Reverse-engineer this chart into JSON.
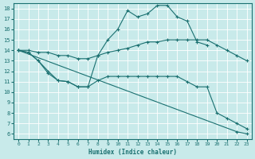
{
  "bg_color": "#c8eaea",
  "line_color": "#1a7070",
  "grid_color": "#b0d8d8",
  "xlabel": "Humidex (Indice chaleur)",
  "xlim": [
    -0.5,
    23.5
  ],
  "ylim": [
    5.5,
    18.5
  ],
  "yticks": [
    6,
    7,
    8,
    9,
    10,
    11,
    12,
    13,
    14,
    15,
    16,
    17,
    18
  ],
  "xticks": [
    0,
    1,
    2,
    3,
    4,
    5,
    6,
    7,
    8,
    9,
    10,
    11,
    12,
    13,
    14,
    15,
    16,
    17,
    18,
    19,
    20,
    21,
    22,
    23
  ],
  "lines": [
    {
      "x": [
        0,
        1,
        2,
        3,
        4,
        5,
        6,
        7,
        8,
        9,
        10,
        11,
        12,
        13,
        14,
        15,
        16,
        17,
        18,
        19
      ],
      "y": [
        14,
        13.8,
        13.0,
        12.0,
        11.1,
        11.0,
        10.5,
        10.5,
        13.5,
        15.0,
        16.0,
        17.8,
        17.2,
        17.5,
        18.3,
        18.3,
        17.2,
        16.8,
        14.8,
        14.5
      ]
    },
    {
      "x": [
        0,
        1,
        2,
        3,
        4,
        5,
        6,
        7,
        8,
        9,
        10,
        11,
        12,
        13,
        14,
        15,
        16,
        17,
        18,
        19,
        20,
        21,
        22,
        23
      ],
      "y": [
        14,
        14,
        13.8,
        13.8,
        13.5,
        13.5,
        13.2,
        13.2,
        13.5,
        13.8,
        14.0,
        14.2,
        14.5,
        14.8,
        14.8,
        15.0,
        15.0,
        15.0,
        15.0,
        15.0,
        14.5,
        14.0,
        13.5,
        13.0
      ]
    },
    {
      "x": [
        0,
        1,
        2,
        3,
        4,
        5,
        6,
        7,
        8,
        9,
        10,
        11,
        12,
        13,
        14,
        15,
        16,
        17,
        18,
        19,
        20,
        21,
        22,
        23
      ],
      "y": [
        14,
        13.8,
        13.0,
        11.8,
        11.1,
        11.0,
        10.5,
        10.5,
        11.1,
        11.5,
        11.5,
        11.5,
        11.5,
        11.5,
        11.5,
        11.5,
        11.5,
        11.0,
        10.5,
        10.5,
        8.0,
        7.5,
        7.0,
        6.5
      ]
    },
    {
      "x": [
        0,
        22,
        23
      ],
      "y": [
        14,
        6.2,
        6.0
      ]
    }
  ]
}
